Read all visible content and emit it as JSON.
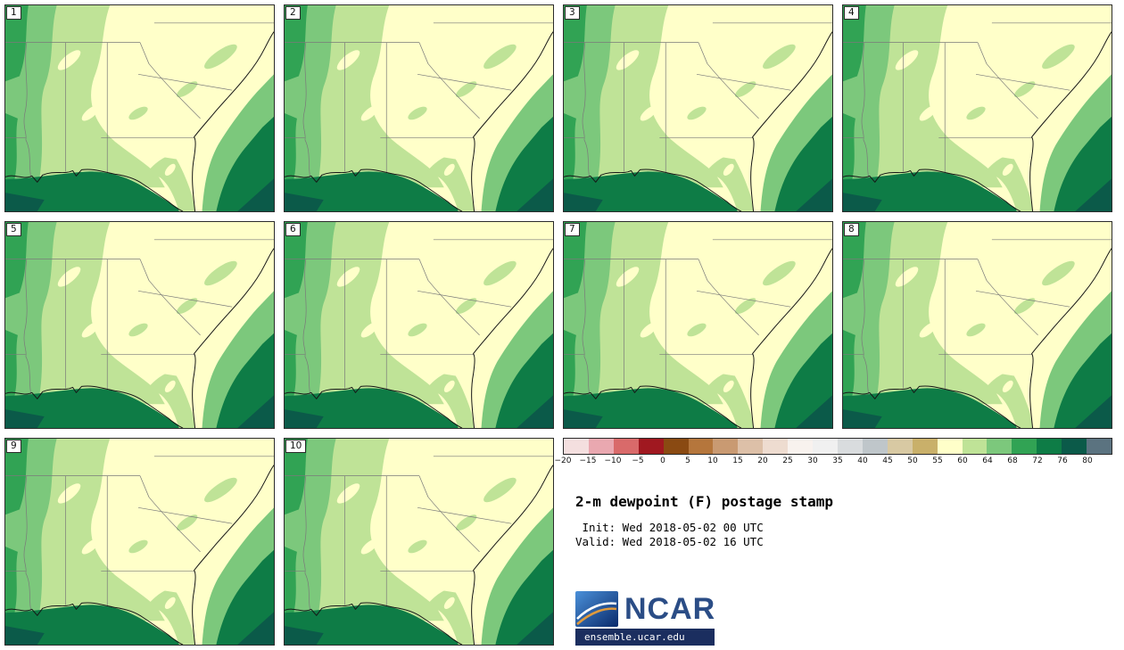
{
  "figure": {
    "title": "2-m dewpoint (F) postage stamp",
    "init_line": " Init: Wed 2018-05-02 00 UTC",
    "valid_line": "Valid: Wed 2018-05-02 16 UTC"
  },
  "panels": [
    "1",
    "2",
    "3",
    "4",
    "5",
    "6",
    "7",
    "8",
    "9",
    "10"
  ],
  "colorbar": {
    "ticks": [
      "−20",
      "−15",
      "−10",
      "−5",
      "0",
      "5",
      "10",
      "15",
      "20",
      "25",
      "30",
      "35",
      "40",
      "45",
      "50",
      "55",
      "60",
      "64",
      "68",
      "72",
      "76",
      "80"
    ],
    "colors": [
      "#f4dfdf",
      "#e9a8b0",
      "#d96a6a",
      "#a01820",
      "#8a4a12",
      "#b5763c",
      "#c99a72",
      "#ddc0a8",
      "#eedcd0",
      "#f8f2ee",
      "#f0f0f0",
      "#d9dcde",
      "#bfc6ca",
      "#d8c9a3",
      "#c9b06a",
      "#ffffc9",
      "#bfe397",
      "#7cc87c",
      "#31a354",
      "#0e7c46",
      "#0b5a49",
      "#5b7380"
    ]
  },
  "map_colors": {
    "c1": "#ffffc9",
    "c2": "#bfe397",
    "c3": "#7cc87c",
    "c4": "#31a354",
    "c5": "#0e7c46",
    "c6": "#0b5a49"
  },
  "branding": {
    "logo_text": "NCAR",
    "site": "ensemble.ucar.edu",
    "logo_color": "#2b4d86",
    "bar_color": "#1b2e5f"
  }
}
